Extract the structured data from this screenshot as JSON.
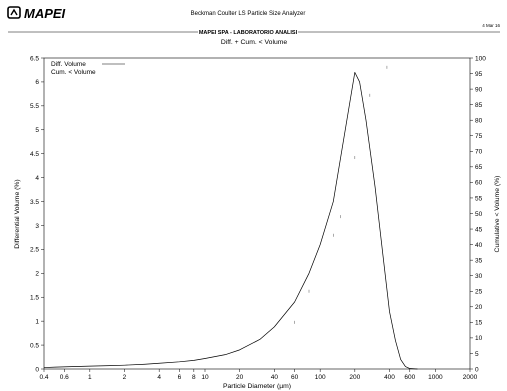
{
  "header": {
    "brand": "MAPEI",
    "instrument": "Beckman Coulter LS Particle Size Analyzer",
    "lab": "MAPEI SPA - LABORATORIO ANALISI",
    "date": "4 Mar 16"
  },
  "chart_data": {
    "type": "line",
    "title": "Diff. + Cum. < Volume",
    "xlabel": "Particle Diameter (µm)",
    "ylabel": "Differential Volume (%)",
    "ylabel_right": "Cumulative < Volume (%)",
    "x_scale": "log",
    "xlim": [
      0.4,
      2000
    ],
    "ylim": [
      0,
      6.5
    ],
    "ylim_right": [
      0,
      100
    ],
    "x_ticks": [
      0.4,
      0.6,
      1,
      2,
      4,
      6,
      8,
      10,
      20,
      40,
      60,
      100,
      200,
      400,
      600,
      1000,
      2000
    ],
    "y_ticks": [
      0,
      0.5,
      1,
      1.5,
      2,
      2.5,
      3,
      3.5,
      4,
      4.5,
      5,
      5.5,
      6,
      6.5
    ],
    "y_ticks_right": [
      0,
      5,
      10,
      15,
      20,
      25,
      30,
      35,
      40,
      45,
      50,
      55,
      60,
      65,
      70,
      75,
      80,
      85,
      90,
      95,
      100
    ],
    "legend_position": "top-left",
    "series": [
      {
        "name": "Diff. Volume",
        "style": "solid",
        "x": [
          0.4,
          0.5,
          0.7,
          1,
          1.5,
          2,
          3,
          4,
          6,
          8,
          10,
          15,
          20,
          30,
          40,
          60,
          80,
          100,
          130,
          160,
          200,
          220,
          250,
          300,
          350,
          400,
          450,
          500,
          550,
          600,
          700
        ],
        "values": [
          0.03,
          0.04,
          0.05,
          0.06,
          0.07,
          0.08,
          0.1,
          0.12,
          0.15,
          0.18,
          0.22,
          0.3,
          0.4,
          0.62,
          0.88,
          1.4,
          2.0,
          2.6,
          3.5,
          4.8,
          6.2,
          6.0,
          5.2,
          3.8,
          2.4,
          1.2,
          0.6,
          0.2,
          0.05,
          0.01,
          0
        ]
      },
      {
        "name": "Cum. < Volume",
        "style": "dotted",
        "x": [
          60,
          80,
          130,
          150,
          200,
          270,
          380
        ],
        "values": [
          15,
          25,
          43,
          49,
          68,
          88,
          97
        ]
      }
    ]
  }
}
